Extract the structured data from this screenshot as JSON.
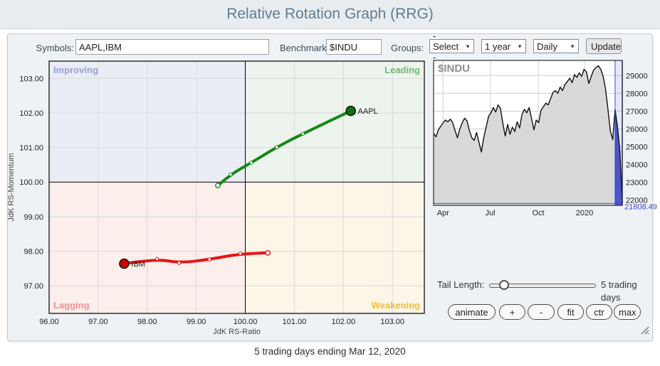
{
  "header": {
    "title": "Relative Rotation Graph (RRG)"
  },
  "toolbar": {
    "symbols_label": "Symbols:",
    "symbols_value": "AAPL,IBM",
    "benchmark_label": "Benchmark:",
    "benchmark_value": "$INDU",
    "groups_label": "Groups:",
    "groups_value": "- Select -",
    "period_value": "1 year",
    "frequency_value": "Daily",
    "update_label": "Update",
    "chevron_glyph": "▼"
  },
  "controls": {
    "tail_label": "Tail Length:",
    "tail_value_label": "5 trading days",
    "buttons": [
      "animate",
      "+",
      "-",
      "fit",
      "ctr",
      "max"
    ]
  },
  "footer": {
    "caption": "5 trading days ending Mar 12, 2020"
  },
  "chart_data": [
    {
      "id": "rrg",
      "type": "scatter",
      "xlabel": "JdK RS-Ratio",
      "ylabel": "JdK RS-Momentum",
      "xlim": [
        96.0,
        103.65
      ],
      "ylim": [
        96.2,
        103.5
      ],
      "xticks": [
        96,
        97,
        98,
        99,
        100,
        101,
        102,
        103
      ],
      "yticks": [
        97,
        98,
        99,
        100,
        101,
        102,
        103
      ],
      "center": [
        100,
        100
      ],
      "grid": true,
      "grid_color": "#d8dadc",
      "axis_color": "#000000",
      "quadrants": [
        {
          "label": "Improving",
          "position": "top-left",
          "label_color": "#96a0d8",
          "bg": "#ebedf6"
        },
        {
          "label": "Leading",
          "position": "top-right",
          "label_color": "#72b877",
          "bg": "#edf3ed"
        },
        {
          "label": "Lagging",
          "position": "bottom-left",
          "label_color": "#f19393",
          "bg": "#fbeeeb"
        },
        {
          "label": "Weakening",
          "position": "bottom-right",
          "label_color": "#f0be38",
          "bg": "#fbf6e8"
        }
      ],
      "series": [
        {
          "name": "AAPL",
          "color": "#148814",
          "marker_color": "#0f700f",
          "points": [
            [
              99.44,
              99.9
            ],
            [
              99.7,
              100.22
            ],
            [
              100.12,
              100.56
            ],
            [
              100.64,
              101.01
            ],
            [
              101.17,
              101.4
            ],
            [
              102.15,
              102.06
            ]
          ]
        },
        {
          "name": "IBM",
          "color": "#e81414",
          "marker_color": "#cf0000",
          "points": [
            [
              100.46,
              97.95
            ],
            [
              99.9,
              97.93
            ],
            [
              99.27,
              97.76
            ],
            [
              98.65,
              97.66
            ],
            [
              98.2,
              97.78
            ],
            [
              97.53,
              97.64
            ]
          ]
        }
      ]
    },
    {
      "id": "benchmark",
      "type": "area",
      "title": "$INDU",
      "title_color": "#8f8f8f",
      "ylim": [
        21700,
        29850
      ],
      "yticks": [
        22000,
        23000,
        24000,
        25000,
        26000,
        27000,
        28000,
        29000
      ],
      "xticks": [
        {
          "label": "Apr",
          "pos": 0.05
        },
        {
          "label": "Jul",
          "pos": 0.3
        },
        {
          "label": "Oct",
          "pos": 0.555
        },
        {
          "label": "2020",
          "pos": 0.8
        }
      ],
      "values": [
        25750,
        25550,
        25950,
        26150,
        26350,
        26500,
        26400,
        26550,
        26350,
        25900,
        25500,
        26000,
        26350,
        26600,
        26450,
        25900,
        25500,
        25350,
        25800,
        25250,
        24700,
        25500,
        26100,
        26700,
        26900,
        27200,
        26950,
        27350,
        27150,
        26300,
        25600,
        26250,
        25700,
        26100,
        25850,
        26400,
        26050,
        26800,
        27100,
        26900,
        27200,
        26600,
        25950,
        26500,
        26350,
        27050,
        27250,
        27450,
        27350,
        27700,
        28050,
        28150,
        28000,
        28350,
        28150,
        28500,
        28650,
        28850,
        28600,
        29050,
        28900,
        29150,
        28950,
        29350,
        29200,
        28550,
        28950,
        29300,
        29450,
        29550,
        29350,
        28950,
        28250,
        27100,
        25900,
        25400,
        27100,
        26100,
        24800,
        21808.49
      ],
      "last_value": 21808.49,
      "last_value_label": "21808.49",
      "tail_band": {
        "start_frac": 0.962
      },
      "line_color": "#111111",
      "fill_color": "#d9d9d9",
      "grid_color": "#cfcfcf",
      "frame_color": "#2a2a2a",
      "highlight_color": "#3c4ac8"
    }
  ]
}
